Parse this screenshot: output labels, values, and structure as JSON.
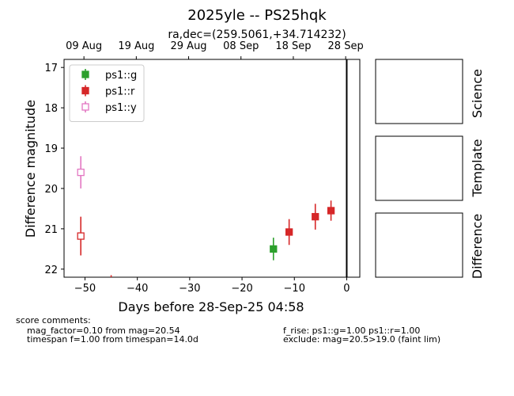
{
  "title": "2025yle -- PS25hqk",
  "subtitle": "ra,dec=(259.5061,+34.714232)",
  "chart_data": {
    "type": "scatter",
    "xlabel": "Days before 28-Sep-25 04:58",
    "ylabel": "Difference magnitude",
    "xlim": [
      -54,
      2.5
    ],
    "ylim": [
      22.2,
      16.8
    ],
    "y_inverted": true,
    "x_ticks": [
      -50,
      -40,
      -30,
      -20,
      -10,
      0
    ],
    "y_ticks": [
      17,
      18,
      19,
      20,
      21,
      22
    ],
    "top_axis_ticks": [
      {
        "x": -50.2,
        "label": "09 Aug"
      },
      {
        "x": -40.2,
        "label": "19 Aug"
      },
      {
        "x": -30.2,
        "label": "29 Aug"
      },
      {
        "x": -20.2,
        "label": "08 Sep"
      },
      {
        "x": -10.2,
        "label": "18 Sep"
      },
      {
        "x": -0.2,
        "label": "28 Sep"
      }
    ],
    "vline_x": 0,
    "legend_position": "top-left",
    "series": [
      {
        "name": "ps1::g",
        "color": "#2ca02c",
        "filled": true,
        "points": [
          {
            "x": -14.0,
            "y": 21.5,
            "err": 0.28
          }
        ]
      },
      {
        "name": "ps1::r",
        "color": "#d62728",
        "filled": true,
        "points": [
          {
            "x": -11.0,
            "y": 21.08,
            "err": 0.32
          },
          {
            "x": -6.0,
            "y": 20.7,
            "err": 0.32
          },
          {
            "x": -3.0,
            "y": 20.55,
            "err": 0.25
          }
        ]
      },
      {
        "name": "ps1::r",
        "color": "#d62728",
        "filled": false,
        "in_legend": false,
        "points": [
          {
            "x": -50.8,
            "y": 21.18,
            "err": 0.48
          }
        ]
      },
      {
        "name": "ps1::r",
        "color": "#d62728",
        "filled": false,
        "in_legend": false,
        "marker": "none",
        "points": [
          {
            "x": -45.0,
            "y": 22.3,
            "err": 0.15
          }
        ]
      },
      {
        "name": "ps1::y",
        "color": "#e377c2",
        "filled": false,
        "points": [
          {
            "x": -50.8,
            "y": 19.6,
            "err": 0.4
          }
        ]
      }
    ]
  },
  "panels": [
    "Science",
    "Template",
    "Difference"
  ],
  "comments": {
    "header": "score comments:",
    "left": [
      "mag_factor=0.10 from mag=20.54",
      "timespan f=1.00 from timespan=14.0d"
    ],
    "right": [
      "f_rise: ps1::g=1.00 ps1::r=1.00",
      "exclude: mag=20.5>19.0 (faint lim)"
    ]
  }
}
